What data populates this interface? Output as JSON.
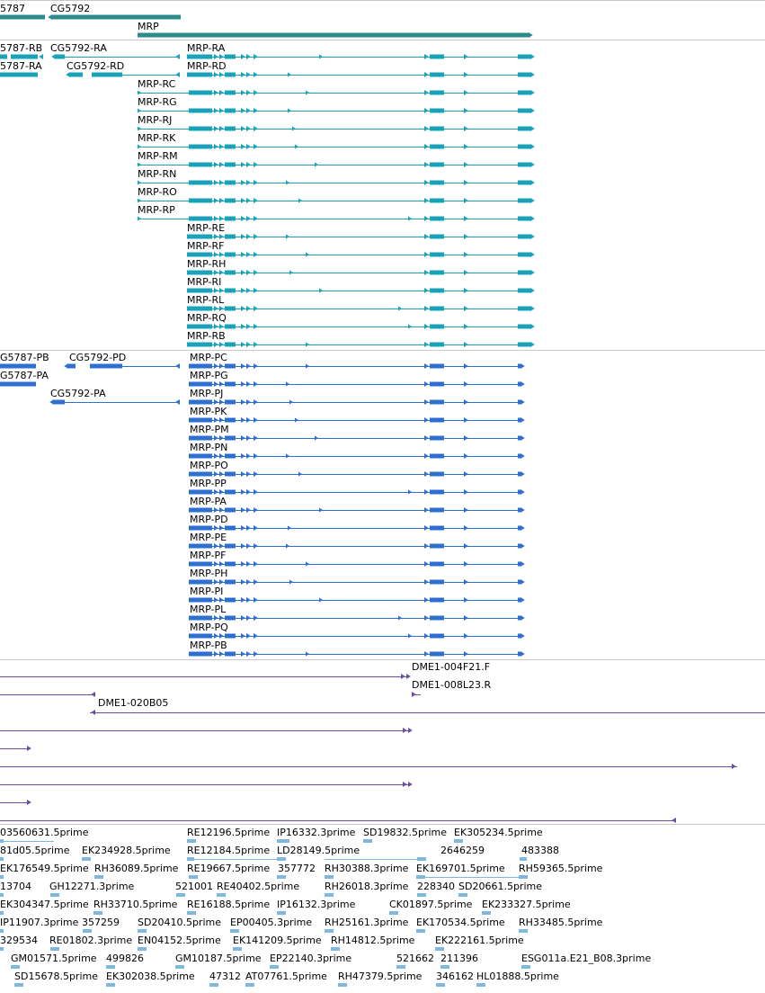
{
  "colors": {
    "gene": "#2e8b8b",
    "transcript_teal": "#1aa3b8",
    "transcript_blue": "#2f6fd0",
    "alignment_purple": "#6b4ea0",
    "est_lightblue": "#7fb8df",
    "separator": "#c8c8c8"
  },
  "genes": [
    {
      "label": "5787"
    },
    {
      "label": "CG5792"
    },
    {
      "label": "MRP"
    }
  ],
  "rna_transcripts": [
    {
      "label": "5787-RB"
    },
    {
      "label": "CG5792-RA"
    },
    {
      "label": "MRP-RA"
    },
    {
      "label": "5787-RA"
    },
    {
      "label": "CG5792-RD"
    },
    {
      "label": "MRP-RD"
    },
    {
      "label": "MRP-RC"
    },
    {
      "label": "MRP-RG"
    },
    {
      "label": "MRP-RJ"
    },
    {
      "label": "MRP-RK"
    },
    {
      "label": "MRP-RM"
    },
    {
      "label": "MRP-RN"
    },
    {
      "label": "MRP-RO"
    },
    {
      "label": "MRP-RP"
    },
    {
      "label": "MRP-RE"
    },
    {
      "label": "MRP-RF"
    },
    {
      "label": "MRP-RH"
    },
    {
      "label": "MRP-RI"
    },
    {
      "label": "MRP-RL"
    },
    {
      "label": "MRP-RQ"
    },
    {
      "label": "MRP-RB"
    }
  ],
  "protein_transcripts": [
    {
      "label": "G5787-PB"
    },
    {
      "label": "CG5792-PD"
    },
    {
      "label": "MRP-PC"
    },
    {
      "label": "G5787-PA"
    },
    {
      "label": "MRP-PG"
    },
    {
      "label": "CG5792-PA"
    },
    {
      "label": "MRP-PJ"
    },
    {
      "label": "MRP-PK"
    },
    {
      "label": "MRP-PM"
    },
    {
      "label": "MRP-PN"
    },
    {
      "label": "MRP-PO"
    },
    {
      "label": "MRP-PP"
    },
    {
      "label": "MRP-PA"
    },
    {
      "label": "MRP-PD"
    },
    {
      "label": "MRP-PE"
    },
    {
      "label": "MRP-PF"
    },
    {
      "label": "MRP-PH"
    },
    {
      "label": "MRP-PI"
    },
    {
      "label": "MRP-PL"
    },
    {
      "label": "MRP-PQ"
    },
    {
      "label": "MRP-PB"
    }
  ],
  "clone_alignments": [
    {
      "label": "DME1-004F21.F"
    },
    {
      "label": "DME1-008L23.R"
    },
    {
      "label": "DME1-020B05"
    }
  ],
  "est_rows": [
    [
      "03560631.5prime",
      "RE12196.5prime",
      "IP16332.3prime",
      "SD19832.5prime",
      "EK305234.5prime"
    ],
    [
      "81d05.5prime",
      "EK234928.5prime",
      "RE12184.5prime",
      "LD28149.5prime",
      "2646259",
      "483388"
    ],
    [
      "EK176549.5prime",
      "RH36089.5prime",
      "RE19667.5prime",
      "357772",
      "RH30388.3prime",
      "EK169701.5prime",
      "RH59365.5prime"
    ],
    [
      "13704",
      "GH12271.3prime",
      "521001",
      "RE40402.5prime",
      "RH26018.3prime",
      "228340",
      "SD20661.5prime"
    ],
    [
      "EK304347.5prime",
      "RH33710.5prime",
      "RE16188.5prime",
      "IP16132.3prime",
      "CK01897.5prime",
      "EK233327.5prime"
    ],
    [
      "IP11907.3prime",
      "357259",
      "SD20410.5prime",
      "EP00405.3prime",
      "RH25161.3prime",
      "EK170534.5prime",
      "RH33485.5prime"
    ],
    [
      "329534",
      "RE01802.3prime",
      "EN04152.5prime",
      "EK141209.5prime",
      "RH14812.5prime",
      "EK222161.5prime"
    ],
    [
      "GM01571.5prime",
      "499826",
      "GM10187.5prime",
      "EP22140.3prime",
      "521662",
      "211396",
      "ESG011a.E21_B08.3prime"
    ],
    [
      "SD15678.5prime",
      "EK302038.5prime",
      "47312",
      "AT07761.5prime",
      "RH47379.5prime",
      "346162",
      "HL01888.5prime"
    ]
  ]
}
